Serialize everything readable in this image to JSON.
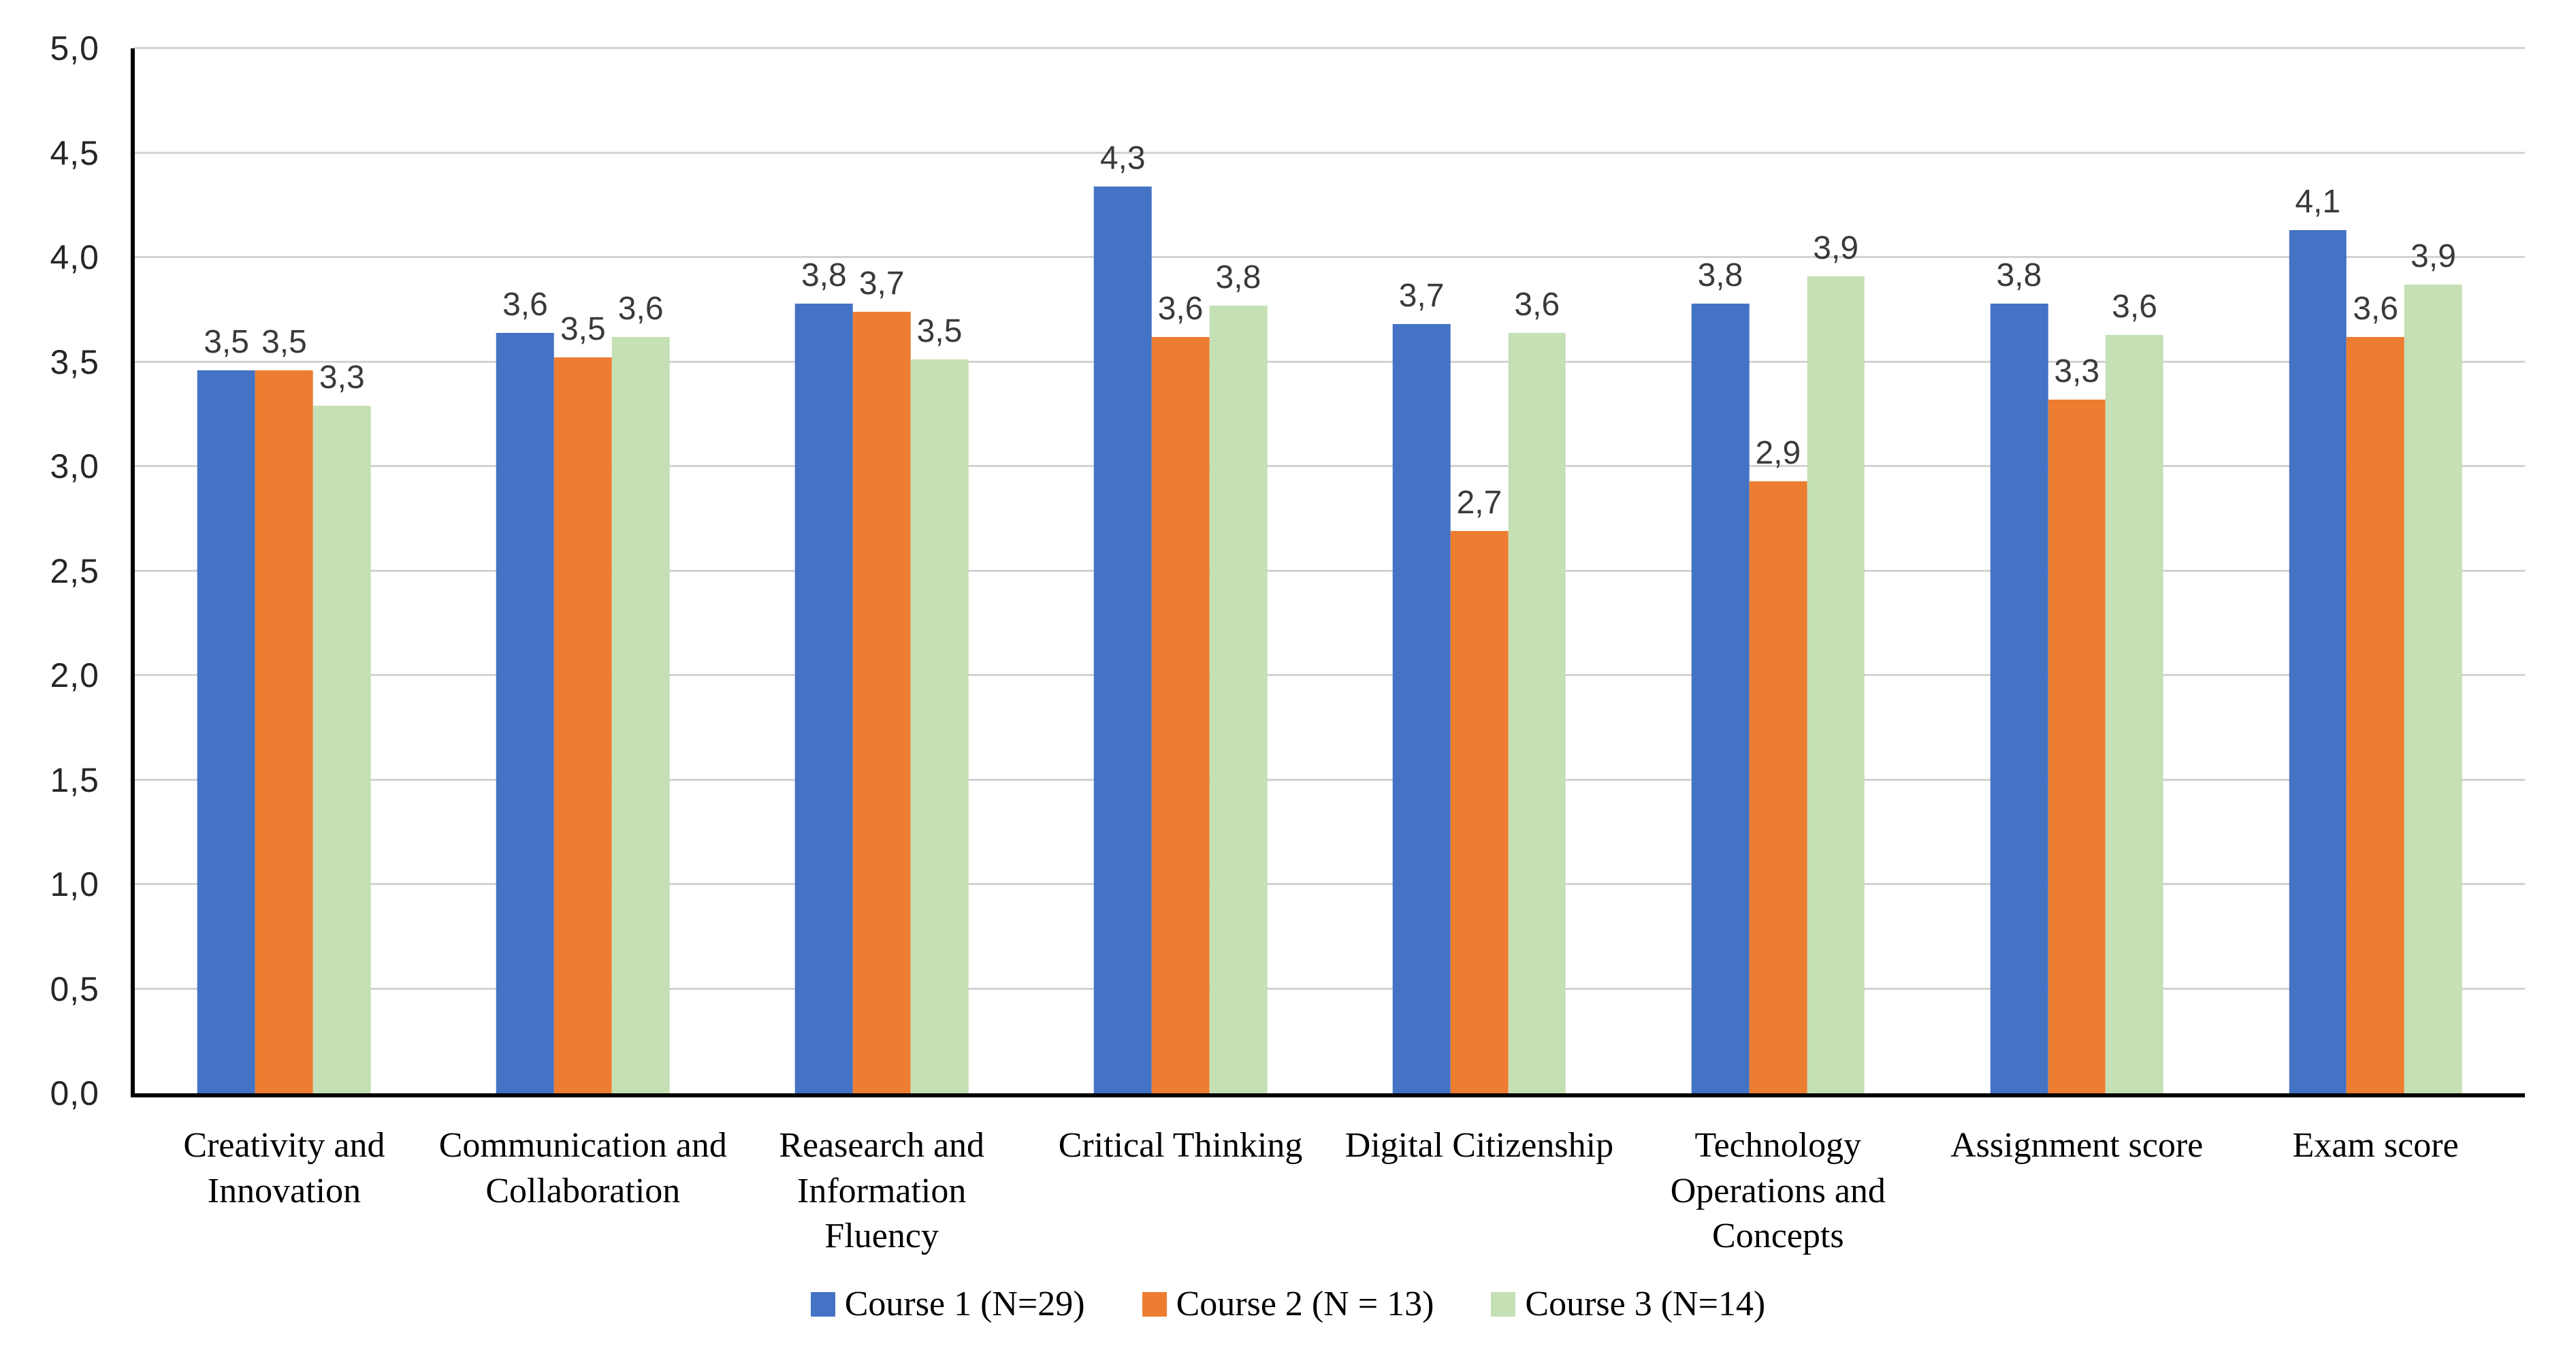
{
  "chart_data": {
    "type": "bar",
    "title": "",
    "xlabel": "",
    "ylabel": "",
    "grid": true,
    "legend_position": "bottom",
    "decimal_separator": "comma",
    "y_axis": {
      "min": 0,
      "max": 5,
      "step": 0.5,
      "tick_labels": [
        "0,0",
        "0,5",
        "1,0",
        "1,5",
        "2,0",
        "2,5",
        "3,0",
        "3,5",
        "4,0",
        "4,5",
        "5,0"
      ]
    },
    "categories": [
      {
        "label": "Creativity and Innovation",
        "lines": [
          "Creativity and",
          "Innovation"
        ]
      },
      {
        "label": "Communication and Collaboration",
        "lines": [
          "Communication and",
          "Collaboration"
        ]
      },
      {
        "label": "Reasearch and Information Fluency",
        "lines": [
          "Reasearch and",
          "Information",
          "Fluency"
        ]
      },
      {
        "label": "Critical Thinking",
        "lines": [
          "Critical Thinking"
        ]
      },
      {
        "label": "Digital Citizenship",
        "lines": [
          "Digital Citizenship"
        ]
      },
      {
        "label": "Technology Operations and Concepts",
        "lines": [
          "Technology",
          "Operations and",
          "Concepts"
        ]
      },
      {
        "label": "Assignment score",
        "lines": [
          "Assignment score"
        ]
      },
      {
        "label": "Exam score",
        "lines": [
          "Exam score"
        ]
      }
    ],
    "series": [
      {
        "name": "Course 1 (N=29)",
        "color": "#4472C4",
        "values": [
          3.46,
          3.64,
          3.78,
          4.34,
          3.68,
          3.78,
          3.78,
          4.13
        ],
        "labels": [
          "3,5",
          "3,6",
          "3,8",
          "4,3",
          "3,7",
          "3,8",
          "3,8",
          "4,1"
        ]
      },
      {
        "name": "Course 2 (N = 13)",
        "color": "#ED7D31",
        "values": [
          3.46,
          3.52,
          3.74,
          3.62,
          2.69,
          2.93,
          3.32,
          3.62
        ],
        "labels": [
          "3,5",
          "3,5",
          "3,7",
          "3,6",
          "2,7",
          "2,9",
          "3,3",
          "3,6"
        ]
      },
      {
        "name": "Course 3 (N=14)",
        "color": "#C5E0B4",
        "values": [
          3.29,
          3.62,
          3.51,
          3.77,
          3.64,
          3.91,
          3.63,
          3.87
        ],
        "labels": [
          "3,3",
          "3,6",
          "3,5",
          "3,8",
          "3,6",
          "3,9",
          "3,6",
          "3,9"
        ]
      }
    ],
    "colors": {
      "gridline": "#d2d2d2",
      "axis": "#000000",
      "tick_text": "#262626",
      "data_label_text": "#3a3a3a"
    }
  }
}
